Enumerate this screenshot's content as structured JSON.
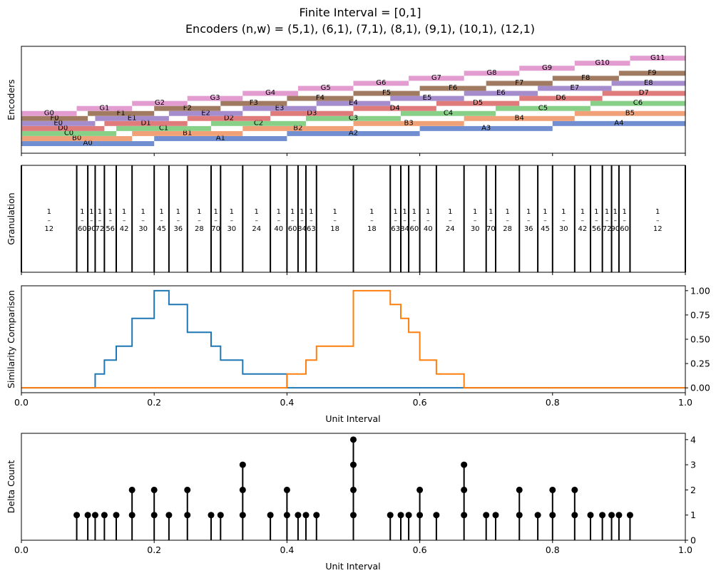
{
  "figure": {
    "title_line1": "Finite Interval = [0,1]",
    "title_line2": "Encoders (n,w) = (5,1), (6,1), (7,1), (8,1), (9,1), (10,1), (12,1)"
  },
  "colors": {
    "A": "#4c72c4",
    "B": "#ee8a55",
    "C": "#6ac46a",
    "D": "#d75a5a",
    "E": "#8e6fbf",
    "F": "#8a5a3a",
    "G": "#db83c4",
    "series1": "#1f77b4",
    "series2": "#ff7f0e",
    "stem": "#000000"
  },
  "chart_data": [
    {
      "type": "bar",
      "ylabel": "Encoders",
      "xlim": [
        0,
        1
      ],
      "groups": [
        {
          "letter": "A",
          "n": 5,
          "ticks": [
            0,
            0.2,
            0.4,
            0.6,
            0.8,
            1.0
          ],
          "labels": [
            "A0",
            "A1",
            "A2",
            "A3",
            "A4"
          ]
        },
        {
          "letter": "B",
          "n": 6,
          "ticks": [
            0,
            0.1667,
            0.3333,
            0.5,
            0.6667,
            0.8333,
            1.0
          ],
          "labels": [
            "B0",
            "B1",
            "B2",
            "B3",
            "B4",
            "B5"
          ]
        },
        {
          "letter": "C",
          "n": 7,
          "ticks": [
            0,
            0.1429,
            0.2857,
            0.4286,
            0.5714,
            0.7143,
            0.8571,
            1.0
          ],
          "labels": [
            "C0",
            "C1",
            "C2",
            "C3",
            "C4",
            "C5",
            "C6"
          ]
        },
        {
          "letter": "D",
          "n": 8,
          "ticks": [
            0,
            0.125,
            0.25,
            0.375,
            0.5,
            0.625,
            0.75,
            0.875,
            1.0
          ],
          "labels": [
            "D0",
            "D1",
            "D2",
            "D3",
            "D4",
            "D5",
            "D6",
            "D7"
          ]
        },
        {
          "letter": "E",
          "n": 9,
          "ticks": [
            0,
            0.1111,
            0.2222,
            0.3333,
            0.4444,
            0.5556,
            0.6667,
            0.7778,
            0.8889,
            1.0
          ],
          "labels": [
            "E0",
            "E1",
            "E2",
            "E3",
            "E4",
            "E5",
            "E6",
            "E7",
            "E8"
          ]
        },
        {
          "letter": "F",
          "n": 10,
          "ticks": [
            0,
            0.1,
            0.2,
            0.3,
            0.4,
            0.5,
            0.6,
            0.7,
            0.8,
            0.9,
            1.0
          ],
          "labels": [
            "F0",
            "F1",
            "F2",
            "F3",
            "F4",
            "F5",
            "F6",
            "F7",
            "F8",
            "F9"
          ]
        },
        {
          "letter": "G",
          "n": 12,
          "ticks": [
            0,
            0.0833,
            0.1667,
            0.25,
            0.3333,
            0.4167,
            0.5,
            0.5833,
            0.6667,
            0.75,
            0.8333,
            0.9167,
            1.0
          ],
          "labels": [
            "G0",
            "G1",
            "G2",
            "G3",
            "G4",
            "G5",
            "G6",
            "G7",
            "G8",
            "G9",
            "G10",
            "G11"
          ]
        }
      ]
    },
    {
      "type": "table",
      "ylabel": "Granulation",
      "xlim": [
        0,
        1
      ],
      "boundaries": [
        0,
        0.08333,
        0.1,
        0.11111,
        0.125,
        0.14286,
        0.16667,
        0.2,
        0.22222,
        0.25,
        0.28571,
        0.3,
        0.33333,
        0.375,
        0.4,
        0.41667,
        0.42857,
        0.44444,
        0.5,
        0.55556,
        0.57143,
        0.58333,
        0.6,
        0.625,
        0.66667,
        0.7,
        0.71429,
        0.75,
        0.77778,
        0.8,
        0.83333,
        0.85714,
        0.875,
        0.88889,
        0.9,
        0.91667,
        1.0
      ],
      "labels": [
        {
          "num": "1",
          "den": "12"
        },
        {
          "num": "1",
          "den": "60"
        },
        {
          "num": "1",
          "den": "90"
        },
        {
          "num": "1",
          "den": "72"
        },
        {
          "num": "1",
          "den": "56"
        },
        {
          "num": "1",
          "den": "42"
        },
        {
          "num": "1",
          "den": "30"
        },
        {
          "num": "1",
          "den": "45"
        },
        {
          "num": "1",
          "den": "36"
        },
        {
          "num": "1",
          "den": "28"
        },
        {
          "num": "1",
          "den": "70"
        },
        {
          "num": "1",
          "den": "30"
        },
        {
          "num": "1",
          "den": "24"
        },
        {
          "num": "1",
          "den": "40"
        },
        {
          "num": "1",
          "den": "60"
        },
        {
          "num": "1",
          "den": "84"
        },
        {
          "num": "1",
          "den": "63"
        },
        {
          "num": "1",
          "den": "18"
        },
        {
          "num": "1",
          "den": "18"
        },
        {
          "num": "1",
          "den": "63"
        },
        {
          "num": "1",
          "den": "84"
        },
        {
          "num": "1",
          "den": "60"
        },
        {
          "num": "1",
          "den": "40"
        },
        {
          "num": "1",
          "den": "24"
        },
        {
          "num": "1",
          "den": "30"
        },
        {
          "num": "1",
          "den": "70"
        },
        {
          "num": "1",
          "den": "28"
        },
        {
          "num": "1",
          "den": "36"
        },
        {
          "num": "1",
          "den": "45"
        },
        {
          "num": "1",
          "den": "30"
        },
        {
          "num": "1",
          "den": "42"
        },
        {
          "num": "1",
          "den": "56"
        },
        {
          "num": "1",
          "den": "72"
        },
        {
          "num": "1",
          "den": "90"
        },
        {
          "num": "1",
          "den": "60"
        },
        {
          "num": "1",
          "den": "12"
        }
      ],
      "frac_bar": "–"
    },
    {
      "type": "line",
      "ylabel": "Similarity Comparison",
      "xlabel": "Unit Interval",
      "xlim": [
        0,
        1
      ],
      "ylim": [
        -0.05,
        1.05
      ],
      "xticks": [
        "0.0",
        "0.2",
        "0.4",
        "0.6",
        "0.8",
        "1.0"
      ],
      "yticks": [
        "0.00",
        "0.25",
        "0.50",
        "0.75",
        "1.00"
      ],
      "series": [
        {
          "color_key": "series1",
          "x": [
            0,
            0.11111,
            0.11111,
            0.125,
            0.125,
            0.14286,
            0.14286,
            0.16667,
            0.16667,
            0.2,
            0.2,
            0.22222,
            0.22222,
            0.25,
            0.25,
            0.28571,
            0.28571,
            0.3,
            0.3,
            0.33333,
            0.33333,
            0.4,
            0.4,
            1.0
          ],
          "y": [
            0,
            0,
            0.1429,
            0.1429,
            0.2857,
            0.2857,
            0.4286,
            0.4286,
            0.7143,
            0.7143,
            1.0,
            1.0,
            0.8571,
            0.8571,
            0.5714,
            0.5714,
            0.4286,
            0.4286,
            0.2857,
            0.2857,
            0.1429,
            0.1429,
            0,
            0
          ]
        },
        {
          "color_key": "series2",
          "x": [
            0,
            0.4,
            0.4,
            0.42857,
            0.42857,
            0.44444,
            0.44444,
            0.5,
            0.5,
            0.55556,
            0.55556,
            0.57143,
            0.57143,
            0.58333,
            0.58333,
            0.6,
            0.6,
            0.625,
            0.625,
            0.66667,
            0.66667,
            1.0
          ],
          "y": [
            0,
            0,
            0.1429,
            0.1429,
            0.2857,
            0.2857,
            0.4286,
            0.4286,
            1.0,
            1.0,
            0.8571,
            0.8571,
            0.7143,
            0.7143,
            0.5714,
            0.5714,
            0.2857,
            0.2857,
            0.1429,
            0.1429,
            0,
            0
          ]
        }
      ]
    },
    {
      "type": "scatter",
      "ylabel": "Delta Count",
      "xlabel": "Unit Interval",
      "xlim": [
        0,
        1
      ],
      "ylim": [
        0,
        4.25
      ],
      "xticks": [
        "0.0",
        "0.2",
        "0.4",
        "0.6",
        "0.8",
        "1.0"
      ],
      "yticks": [
        "0",
        "1",
        "2",
        "3",
        "4"
      ],
      "x": [
        0.08333,
        0.1,
        0.11111,
        0.125,
        0.14286,
        0.16667,
        0.2,
        0.22222,
        0.25,
        0.28571,
        0.3,
        0.33333,
        0.375,
        0.4,
        0.41667,
        0.42857,
        0.44444,
        0.5,
        0.55556,
        0.57143,
        0.58333,
        0.6,
        0.625,
        0.66667,
        0.7,
        0.71429,
        0.75,
        0.77778,
        0.8,
        0.83333,
        0.85714,
        0.875,
        0.88889,
        0.9,
        0.91667
      ],
      "y": [
        1,
        1,
        1,
        1,
        1,
        2,
        2,
        1,
        2,
        1,
        1,
        3,
        1,
        2,
        1,
        1,
        1,
        4,
        1,
        1,
        1,
        2,
        1,
        3,
        1,
        1,
        2,
        1,
        2,
        2,
        1,
        1,
        1,
        1,
        1
      ]
    }
  ]
}
